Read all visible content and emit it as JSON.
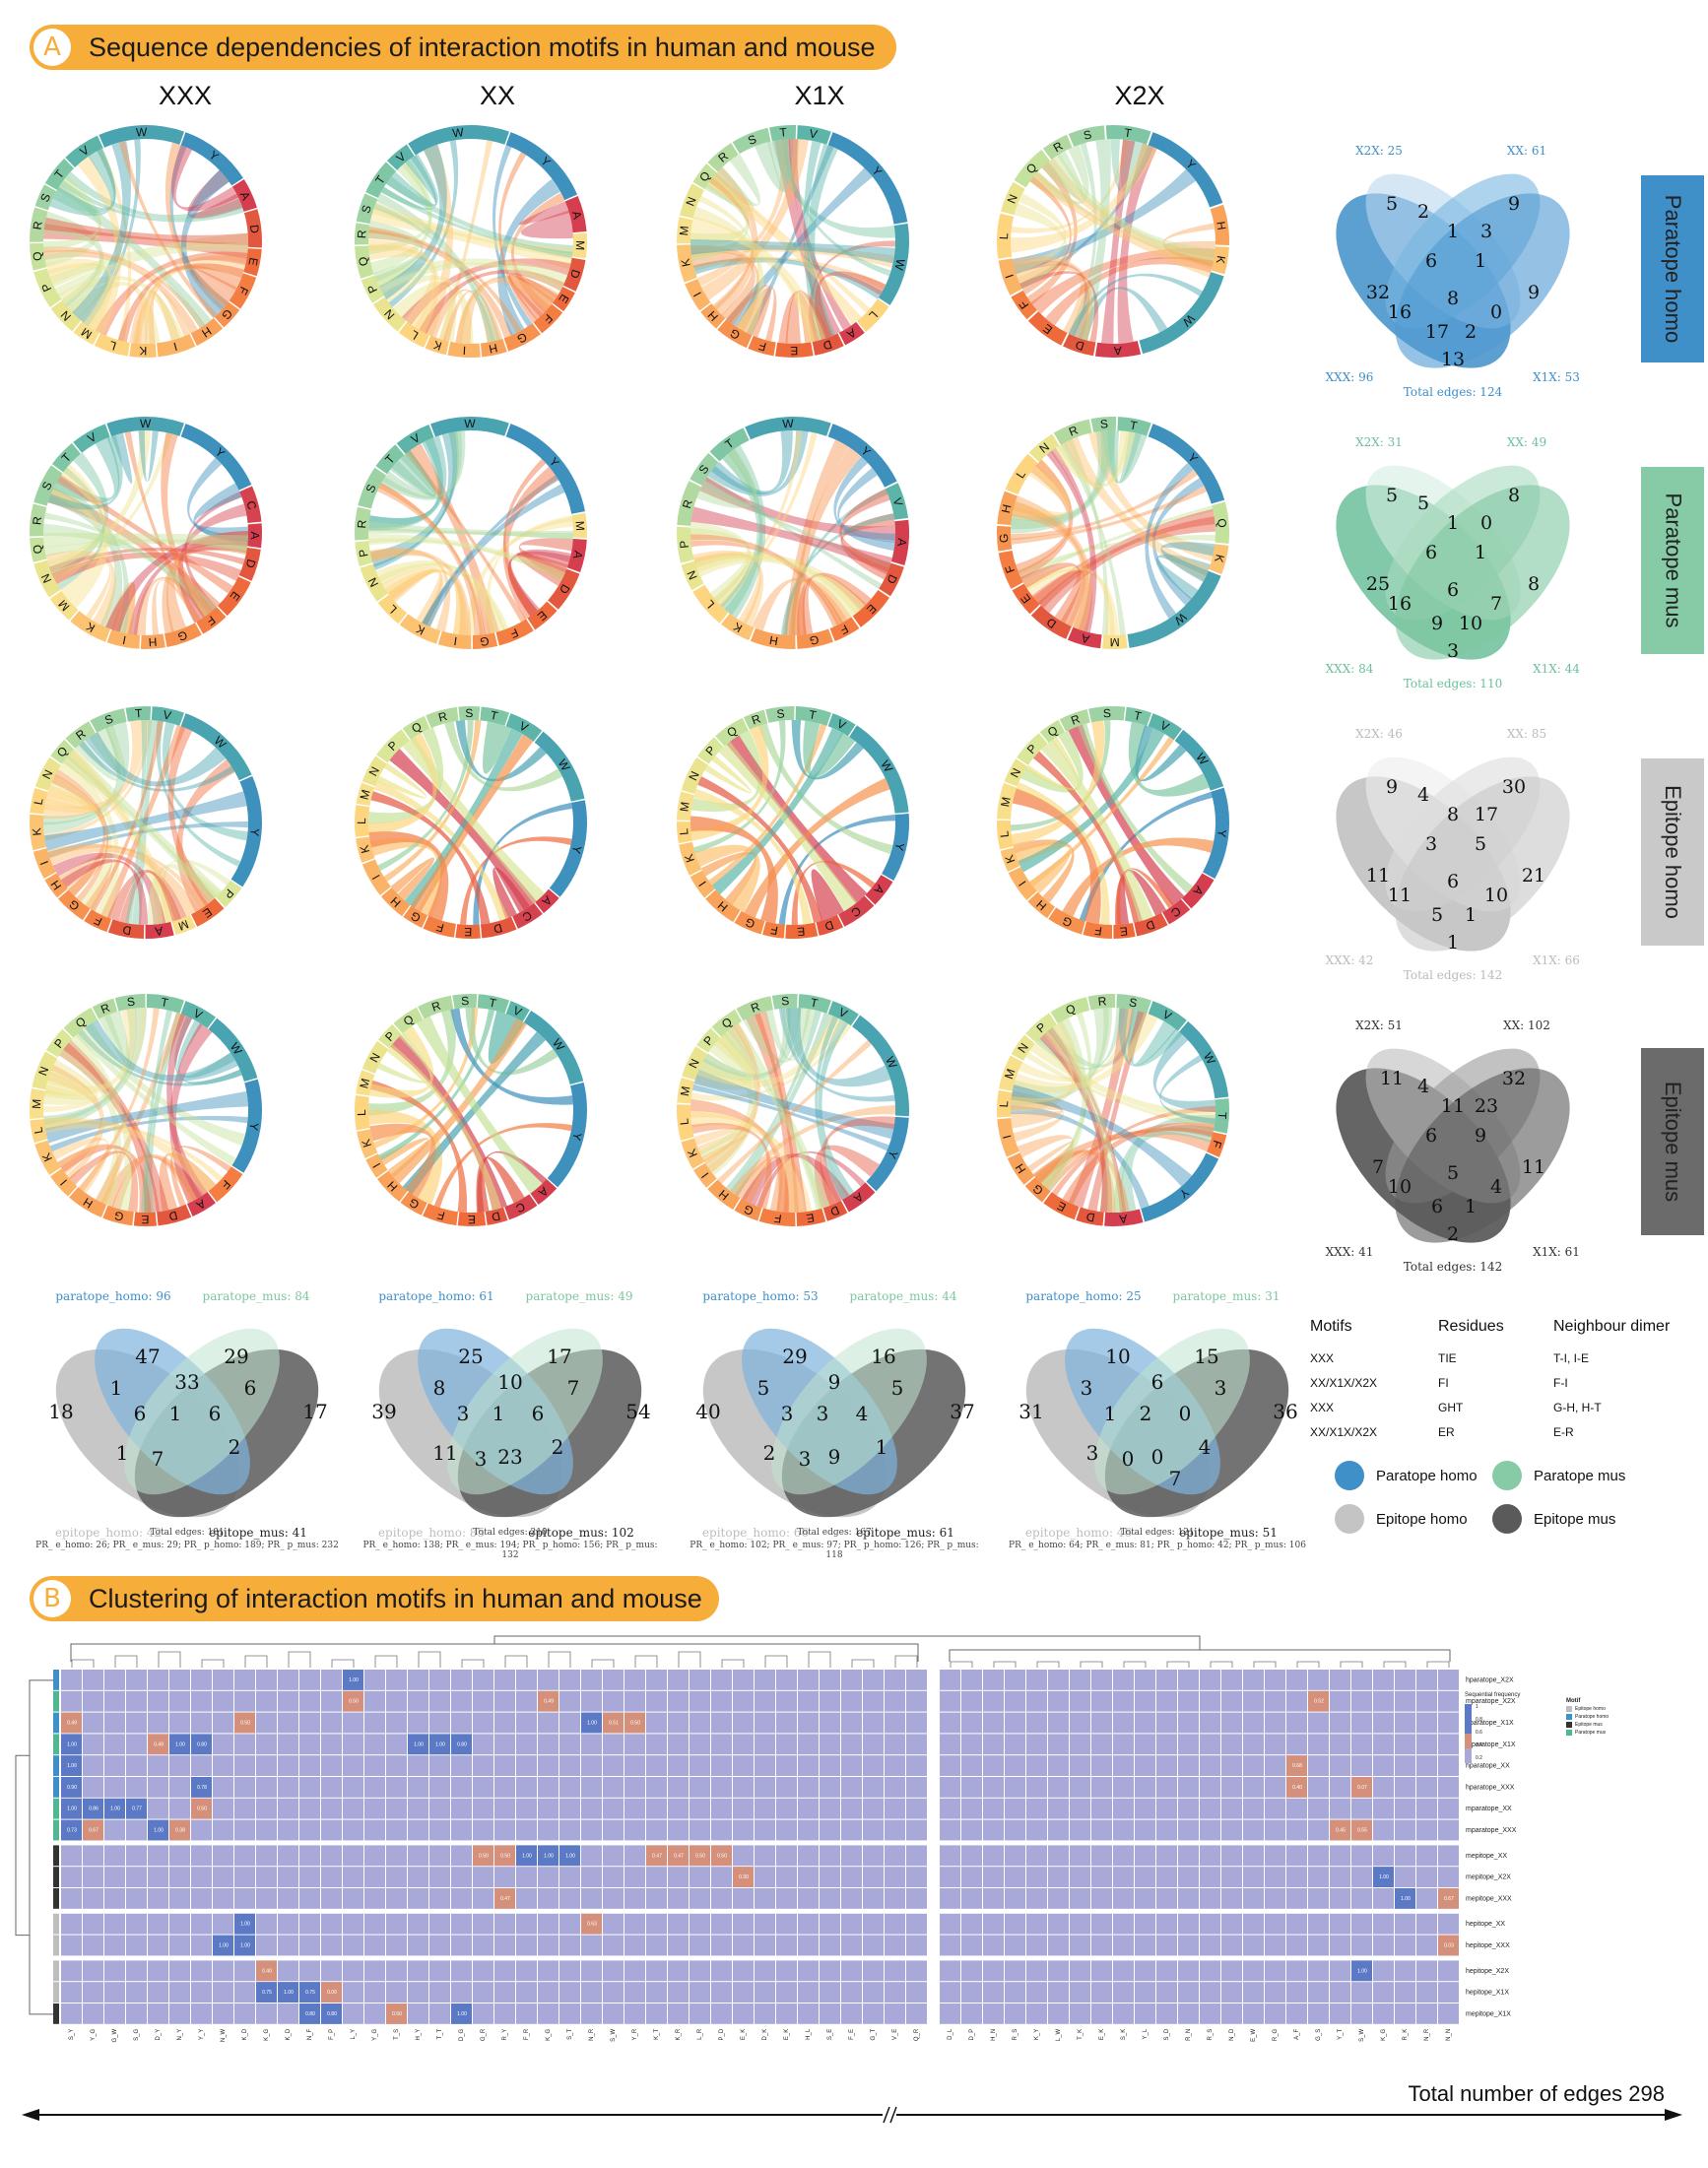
{
  "section_a": {
    "letter": "A",
    "title": "Sequence dependencies of interaction motifs in human and mouse"
  },
  "section_b": {
    "letter": "B",
    "title": "Clustering of interaction motifs in human and mouse"
  },
  "columns": [
    "XXX",
    "XX",
    "X1X",
    "X2X"
  ],
  "row_labels": [
    "Paratope homo",
    "Paratope mus",
    "Epitope homo",
    "Epitope mus"
  ],
  "colors": {
    "paratope_homo": "#3f8fc9",
    "paratope_mus": "#7ec6a0",
    "epitope_homo": "#bdbdbd",
    "epitope_mus": "#5a5a5a",
    "banner": "#f7ad3a"
  },
  "chord_rows": [
    [
      [
        "Y",
        "A",
        "D",
        "E",
        "F",
        "G",
        "H",
        "I",
        "K",
        "L",
        "M",
        "N",
        "P",
        "Q",
        "R",
        "S",
        "T",
        "V",
        "W"
      ],
      [
        "Y",
        "A",
        "M",
        "D",
        "E",
        "F",
        "G",
        "H",
        "I",
        "K",
        "L",
        "N",
        "P",
        "Q",
        "R",
        "S",
        "T",
        "V",
        "W"
      ],
      [
        "Y",
        "W",
        "L",
        "A",
        "D",
        "E",
        "F",
        "G",
        "H",
        "I",
        "K",
        "M",
        "N",
        "Q",
        "R",
        "S",
        "T",
        "V"
      ],
      [
        "Y",
        "H",
        "K",
        "W",
        "A",
        "D",
        "E",
        "F",
        "I",
        "L",
        "N",
        "Q",
        "R",
        "S",
        "T"
      ]
    ],
    [
      [
        "Y",
        "C",
        "A",
        "D",
        "E",
        "F",
        "G",
        "H",
        "I",
        "K",
        "M",
        "N",
        "Q",
        "R",
        "S",
        "T",
        "V",
        "W"
      ],
      [
        "Y",
        "M",
        "A",
        "D",
        "E",
        "F",
        "G",
        "I",
        "K",
        "L",
        "N",
        "P",
        "R",
        "S",
        "T",
        "V",
        "W"
      ],
      [
        "Y",
        "V",
        "A",
        "D",
        "E",
        "F",
        "G",
        "H",
        "K",
        "L",
        "N",
        "P",
        "R",
        "S",
        "T",
        "W"
      ],
      [
        "Y",
        "Q",
        "K",
        "W",
        "M",
        "A",
        "D",
        "E",
        "F",
        "G",
        "H",
        "L",
        "N",
        "R",
        "S",
        "T"
      ]
    ],
    [
      [
        "W",
        "Y",
        "P",
        "E",
        "M",
        "A",
        "D",
        "F",
        "G",
        "H",
        "I",
        "K",
        "L",
        "N",
        "Q",
        "R",
        "S",
        "T",
        "V"
      ],
      [
        "V",
        "W",
        "Y",
        "A",
        "C",
        "D",
        "E",
        "F",
        "G",
        "H",
        "I",
        "K",
        "L",
        "M",
        "N",
        "P",
        "Q",
        "R",
        "S",
        "T"
      ],
      [
        "V",
        "W",
        "Y",
        "A",
        "C",
        "D",
        "E",
        "F",
        "G",
        "H",
        "I",
        "K",
        "L",
        "M",
        "N",
        "P",
        "Q",
        "R",
        "S",
        "T"
      ],
      [
        "V",
        "W",
        "Y",
        "A",
        "C",
        "D",
        "E",
        "F",
        "G",
        "H",
        "I",
        "K",
        "L",
        "M",
        "N",
        "P",
        "Q",
        "R",
        "S",
        "T"
      ]
    ],
    [
      [
        "V",
        "W",
        "Y",
        "F",
        "A",
        "D",
        "E",
        "G",
        "H",
        "I",
        "K",
        "L",
        "M",
        "N",
        "P",
        "Q",
        "R",
        "S",
        "T"
      ],
      [
        "V",
        "W",
        "Y",
        "A",
        "C",
        "D",
        "E",
        "F",
        "G",
        "H",
        "I",
        "K",
        "L",
        "M",
        "N",
        "P",
        "Q",
        "R",
        "S",
        "T"
      ],
      [
        "V",
        "W",
        "Y",
        "A",
        "D",
        "E",
        "F",
        "G",
        "H",
        "I",
        "K",
        "L",
        "M",
        "N",
        "P",
        "Q",
        "R",
        "S",
        "T"
      ],
      [
        "V",
        "W",
        "T",
        "F",
        "Y",
        "A",
        "D",
        "E",
        "G",
        "H",
        "I",
        "L",
        "M",
        "N",
        "P",
        "Q",
        "R",
        "S"
      ]
    ]
  ],
  "right_venns": [
    {
      "set_labels": [
        "X2X: 25",
        "XX: 61",
        "XXX: 96",
        "X1X: 53"
      ],
      "total": "Total edges: 124",
      "regions": [
        "5",
        "9",
        "32",
        "2",
        "1",
        "3",
        "9",
        "6",
        "1",
        "16",
        "8",
        "0",
        "17",
        "2",
        "13"
      ]
    },
    {
      "set_labels": [
        "X2X: 31",
        "XX: 49",
        "XXX: 84",
        "X1X: 44"
      ],
      "total": "Total edges: 110",
      "regions": [
        "5",
        "8",
        "25",
        "5",
        "1",
        "0",
        "8",
        "6",
        "1",
        "16",
        "6",
        "7",
        "9",
        "10",
        "3"
      ]
    },
    {
      "set_labels": [
        "X2X: 46",
        "XX: 85",
        "XXX: 42",
        "X1X: 66"
      ],
      "total": "Total edges: 142",
      "regions": [
        "9",
        "30",
        "11",
        "4",
        "8",
        "17",
        "21",
        "3",
        "5",
        "11",
        "6",
        "10",
        "5",
        "1",
        "1"
      ]
    },
    {
      "set_labels": [
        "X2X: 51",
        "XX: 102",
        "XXX: 41",
        "X1X: 61"
      ],
      "total": "Total edges: 142",
      "regions": [
        "11",
        "32",
        "7",
        "4",
        "11",
        "23",
        "11",
        "6",
        "9",
        "10",
        "5",
        "4",
        "6",
        "1",
        "2"
      ]
    }
  ],
  "bottom_venns": [
    {
      "set_labels": [
        "paratope_homo: 96",
        "paratope_mus: 84",
        "epitope_homo: 42",
        "epitope_mus: 41"
      ],
      "regions": [
        "47",
        "29",
        "18",
        "1",
        "33",
        "6",
        "17",
        "6",
        "1",
        "6",
        "2",
        "1",
        "7"
      ],
      "caption": [
        "Total edges: 181",
        "PR_ e_homo: 26; PR_ e_mus: 29; PR_ p_homo: 189; PR_ p_mus: 232"
      ]
    },
    {
      "set_labels": [
        "paratope_homo: 61",
        "paratope_mus: 49",
        "epitope_homo: 85",
        "epitope_mus: 102"
      ],
      "regions": [
        "25",
        "17",
        "39",
        "8",
        "10",
        "7",
        "54",
        "3",
        "1",
        "6",
        "2",
        "11",
        "3",
        "23"
      ],
      "caption": [
        "Total edges: 210",
        "PR_ e_homo: 138; PR_ e_mus: 194; PR_ p_homo: 156; PR_ p_mus: 132"
      ]
    },
    {
      "set_labels": [
        "paratope_homo: 53",
        "paratope_mus: 44",
        "epitope_homo: 66",
        "epitope_mus: 61"
      ],
      "regions": [
        "29",
        "16",
        "40",
        "5",
        "9",
        "5",
        "37",
        "3",
        "3",
        "4",
        "1",
        "2",
        "3",
        "9"
      ],
      "caption": [
        "Total edges: 167",
        "PR_ e_homo: 102; PR_ e_mus: 97; PR_ p_homo: 126; PR_ p_mus: 118"
      ]
    },
    {
      "set_labels": [
        "paratope_homo: 25",
        "paratope_mus: 31",
        "epitope_homo: 46",
        "epitope_mus: 51"
      ],
      "regions": [
        "10",
        "15",
        "31",
        "3",
        "6",
        "3",
        "36",
        "1",
        "2",
        "0",
        "4",
        "3",
        "0",
        "0",
        "7"
      ],
      "caption": [
        "Total edges: 121",
        "PR_ e_homo: 64; PR_ e_mus: 81; PR_ p_homo: 42; PR_ p_mus: 106"
      ]
    }
  ],
  "motif_table": {
    "headers": [
      "Motifs",
      "Residues",
      "Neighbour dimer"
    ],
    "rows": [
      [
        "XXX",
        "TIE",
        "T-I, I-E"
      ],
      [
        "XX/X1X/X2X",
        "FI",
        "F-I"
      ],
      [
        "XXX",
        "GHT",
        "G-H, H-T"
      ],
      [
        "XX/X1X/X2X",
        "ER",
        "E-R"
      ]
    ]
  },
  "legend": [
    {
      "label": "Paratope homo",
      "color": "#3f8fc9"
    },
    {
      "label": "Paratope mus",
      "color": "#7ec6a0"
    },
    {
      "label": "Epitope homo",
      "color": "#bdbdbd"
    },
    {
      "label": "Epitope mus",
      "color": "#5a5a5a"
    }
  ],
  "heatmap": {
    "row_labels": [
      "hparatope_X2X",
      "mparatope_X2X",
      "hparatope_X1X",
      "mparatope_X1X",
      "hparatope_XX",
      "hparatope_XXX",
      "mparatope_XX",
      "mparatope_XXX",
      "mepitope_XX",
      "mepitope_X2X",
      "mepitope_XXX",
      "hepitope_XX",
      "hepitope_XXX",
      "hepitope_X2X",
      "hepitope_X1X",
      "mepitope_X1X"
    ],
    "row_groups": [
      "paratope_homo",
      "paratope_mus",
      "paratope_homo",
      "paratope_mus",
      "paratope_homo",
      "paratope_homo",
      "paratope_mus",
      "paratope_mus",
      "epitope_mus",
      "epitope_mus",
      "epitope_mus",
      "epitope_homo",
      "epitope_homo",
      "epitope_homo",
      "epitope_homo",
      "epitope_mus"
    ],
    "left_cols": [
      "S_Y",
      "Y_G",
      "G_W",
      "S_G",
      "D_Y",
      "N_Y",
      "Y_Y",
      "N_W",
      "K_D",
      "K_G",
      "K_D",
      "N_F",
      "F_P",
      "L_Y",
      "Y_G",
      "T_S",
      "H_Y",
      "T_T",
      "D_G",
      "G_R",
      "R_Y",
      "F_R",
      "K_G",
      "S_T",
      "N_R",
      "S_W",
      "Y_R",
      "K_T",
      "K_R",
      "L_R",
      "P_D",
      "E_K",
      "D_K",
      "E_K",
      "H_L",
      "S_E",
      "F_E",
      "G_T",
      "V_E",
      "Q_R"
    ],
    "right_cols": [
      "D_L",
      "D_P",
      "H_N",
      "R_S",
      "K_Y",
      "L_W",
      "T_K",
      "E_K",
      "S_K",
      "Y_L",
      "S_D",
      "R_N",
      "R_S",
      "N_D",
      "E_W",
      "R_G",
      "A_F",
      "G_S",
      "Y_T",
      "S_W",
      "K_G",
      "R_K",
      "N_R",
      "N_N"
    ],
    "colorbar_title": "Sequential frequency",
    "colorbar_ticks": [
      "1",
      "0.8",
      "0.6",
      "0.4",
      "0.2"
    ],
    "legend_title": "Motif",
    "legend_items": [
      "Epitope homo",
      "Paratope homo",
      "Epitope mus",
      "Paratope mus"
    ],
    "highlights": [
      [
        0,
        "L",
        13,
        "1.00"
      ],
      [
        1,
        "L",
        13,
        "0.50"
      ],
      [
        1,
        "L",
        22,
        "0.49"
      ],
      [
        2,
        "L",
        0,
        "0.49"
      ],
      [
        2,
        "L",
        8,
        "0.50"
      ],
      [
        2,
        "L",
        24,
        "1.00"
      ],
      [
        2,
        "L",
        25,
        "0.51"
      ],
      [
        2,
        "L",
        26,
        "0.50"
      ],
      [
        3,
        "L",
        0,
        "1.00"
      ],
      [
        3,
        "L",
        4,
        "0.49"
      ],
      [
        3,
        "L",
        5,
        "1.00"
      ],
      [
        3,
        "L",
        6,
        "0.80"
      ],
      [
        3,
        "L",
        16,
        "1.00"
      ],
      [
        3,
        "L",
        17,
        "1.00"
      ],
      [
        3,
        "L",
        18,
        "0.80"
      ],
      [
        4,
        "L",
        0,
        "1.00"
      ],
      [
        5,
        "L",
        0,
        "0.90"
      ],
      [
        5,
        "L",
        6,
        "0.78"
      ],
      [
        6,
        "L",
        0,
        "1.00"
      ],
      [
        6,
        "L",
        1,
        "0.86"
      ],
      [
        6,
        "L",
        2,
        "1.00"
      ],
      [
        6,
        "L",
        3,
        "0.77"
      ],
      [
        6,
        "L",
        6,
        "0.50"
      ],
      [
        7,
        "L",
        0,
        "0.73"
      ],
      [
        7,
        "L",
        1,
        "0.67"
      ],
      [
        7,
        "L",
        4,
        "1.00"
      ],
      [
        7,
        "L",
        5,
        "0.38"
      ],
      [
        8,
        "L",
        19,
        "0.50"
      ],
      [
        8,
        "L",
        20,
        "0.50"
      ],
      [
        8,
        "L",
        21,
        "1.00"
      ],
      [
        8,
        "L",
        22,
        "1.00"
      ],
      [
        8,
        "L",
        23,
        "1.00"
      ],
      [
        8,
        "L",
        27,
        "0.47"
      ],
      [
        8,
        "L",
        28,
        "0.47"
      ],
      [
        8,
        "L",
        29,
        "0.50"
      ],
      [
        8,
        "L",
        30,
        "0.50"
      ],
      [
        9,
        "L",
        31,
        "0.30"
      ],
      [
        10,
        "L",
        20,
        "0.47"
      ],
      [
        11,
        "L",
        8,
        "1.00"
      ],
      [
        11,
        "L",
        24,
        "0.63"
      ],
      [
        12,
        "L",
        7,
        "1.00"
      ],
      [
        12,
        "L",
        8,
        "1.00"
      ],
      [
        13,
        "L",
        9,
        "0.40"
      ],
      [
        14,
        "L",
        9,
        "0.75"
      ],
      [
        14,
        "L",
        10,
        "1.00"
      ],
      [
        14,
        "L",
        11,
        "0.75"
      ],
      [
        14,
        "L",
        12,
        "0.00"
      ],
      [
        15,
        "L",
        11,
        "0.80"
      ],
      [
        15,
        "L",
        12,
        "0.80"
      ],
      [
        15,
        "L",
        15,
        "0.50"
      ],
      [
        15,
        "L",
        18,
        "1.00"
      ],
      [
        1,
        "R",
        17,
        "0.52"
      ],
      [
        4,
        "R",
        16,
        "0.68"
      ],
      [
        5,
        "R",
        16,
        "0.40"
      ],
      [
        5,
        "R",
        19,
        "0.07"
      ],
      [
        7,
        "R",
        18,
        "0.45"
      ],
      [
        7,
        "R",
        19,
        "0.55"
      ],
      [
        9,
        "R",
        20,
        "1.00"
      ],
      [
        10,
        "R",
        21,
        "1.00"
      ],
      [
        10,
        "R",
        23,
        "0.67"
      ],
      [
        12,
        "R",
        23,
        "0.03"
      ],
      [
        13,
        "R",
        19,
        "1.00"
      ]
    ]
  },
  "axis_label": "Total number of edges 298"
}
